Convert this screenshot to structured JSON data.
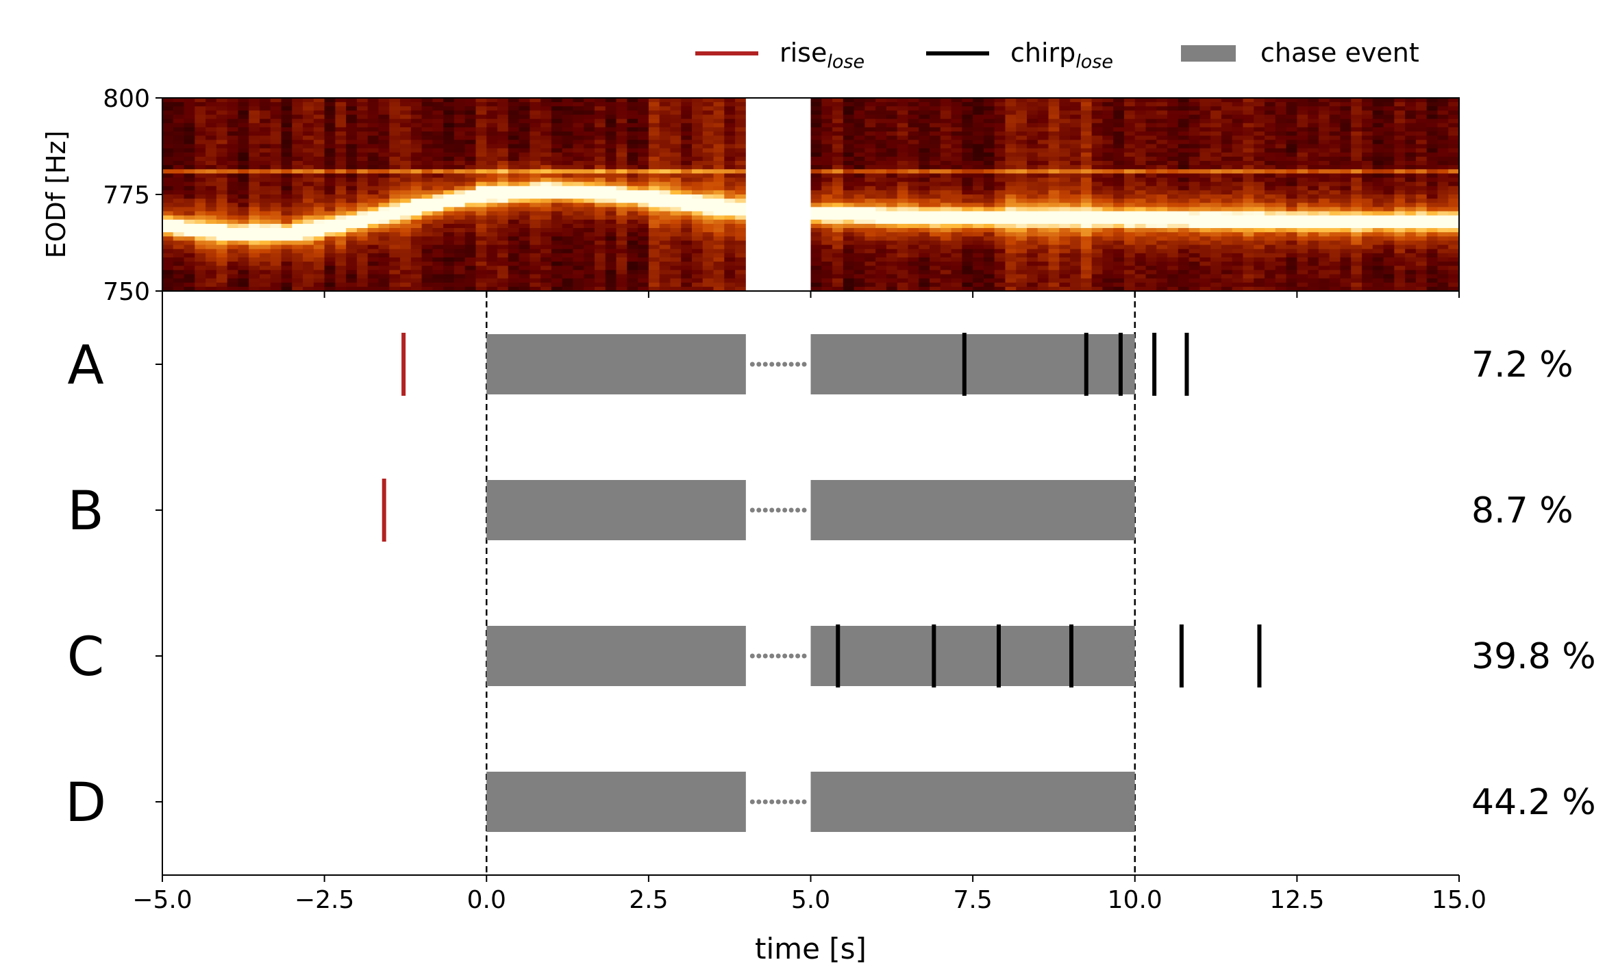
{
  "legend": {
    "placement": "top-right",
    "items": [
      {
        "label": "rise",
        "sub": "lose",
        "color": "#b22222",
        "kind": "line"
      },
      {
        "label": "chirp",
        "sub": "lose",
        "color": "#000000",
        "kind": "line"
      },
      {
        "label": "chase event",
        "sub": "",
        "color": "#808080",
        "kind": "patch"
      }
    ]
  },
  "chart_data": [
    {
      "type": "heatmap",
      "ylabel": "EODf [Hz]",
      "ylim": [
        750,
        800
      ],
      "yticks": [
        "750",
        "775",
        "800"
      ],
      "xlim": [
        -5,
        15
      ],
      "colormap": "afmhot",
      "gap_x": [
        4,
        5
      ],
      "traces": [
        {
          "name": "",
          "points": [
            [
              -5,
              767
            ],
            [
              -4,
              765
            ],
            [
              -3,
              765
            ],
            [
              -2,
              768
            ],
            [
              -1,
              772
            ],
            [
              0,
              775
            ],
            [
              1,
              776
            ],
            [
              2,
              775
            ],
            [
              3,
              773
            ],
            [
              4,
              771
            ],
            [
              5,
              770
            ],
            [
              7,
              769
            ],
            [
              9,
              769
            ],
            [
              11,
              768.5
            ],
            [
              13,
              768
            ],
            [
              15,
              768
            ]
          ]
        }
      ],
      "faint_line_y": 781
    },
    {
      "type": "event_raster",
      "xlabel": "time [s]",
      "xlim": [
        -5,
        15
      ],
      "xticks": [
        "−5.0",
        "−2.5",
        "0.0",
        "2.5",
        "5.0",
        "7.5",
        "10.0",
        "12.5",
        "15.0"
      ],
      "xtick_values": [
        -5,
        -2.5,
        0,
        2.5,
        5,
        7.5,
        10,
        12.5,
        15
      ],
      "vlines": [
        0,
        10
      ],
      "chase_segments": [
        [
          0,
          4
        ],
        [
          5,
          10
        ]
      ],
      "rows": [
        {
          "label": "A",
          "percent": "7.2 %",
          "rises": [
            -1.28
          ],
          "chirps": [
            7.37,
            9.25,
            9.78,
            10.3,
            10.8
          ]
        },
        {
          "label": "B",
          "percent": "8.7 %",
          "rises": [
            -1.58
          ],
          "chirps": []
        },
        {
          "label": "C",
          "percent": "39.8 %",
          "rises": [],
          "chirps": [
            5.42,
            6.9,
            7.9,
            9.02,
            10.72,
            11.92
          ]
        },
        {
          "label": "D",
          "percent": "44.2 %",
          "rises": [],
          "chirps": []
        }
      ]
    }
  ]
}
